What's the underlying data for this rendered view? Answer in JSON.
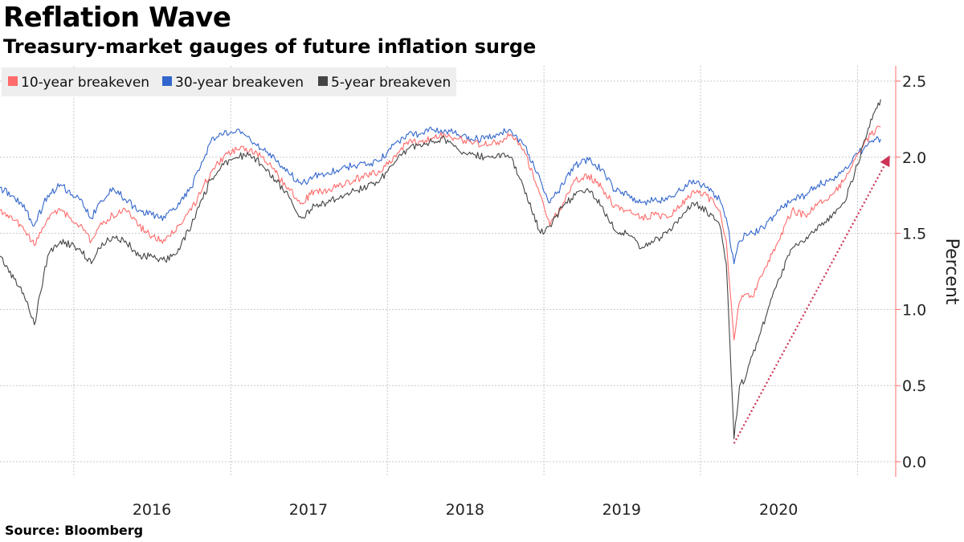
{
  "header": {
    "title": "Reflation Wave",
    "subtitle": "Treasury-market gauges of future inflation surge"
  },
  "footer": {
    "source": "Source: Bloomberg"
  },
  "chart_data": {
    "type": "line",
    "ylabel": "Percent",
    "ylim": [
      -0.1,
      2.6
    ],
    "xlim": [
      "2015-07-13",
      "2021-03-31"
    ],
    "y_ticks": [
      0.0,
      0.5,
      1.0,
      1.5,
      2.0,
      2.5
    ],
    "y_tick_labels": [
      "0.0",
      "0.5",
      "1.0",
      "1.5",
      "2.0",
      "2.5"
    ],
    "x_tick_labels": [
      {
        "label": "2016",
        "date": "2016-07-01"
      },
      {
        "label": "2017",
        "date": "2017-07-01"
      },
      {
        "label": "2018",
        "date": "2018-07-01"
      },
      {
        "label": "2019",
        "date": "2019-07-01"
      },
      {
        "label": "2020",
        "date": "2020-07-01"
      }
    ],
    "x_gridlines": [
      "2016-01-01",
      "2017-01-01",
      "2018-01-01",
      "2019-01-01",
      "2020-01-01",
      "2021-01-01"
    ],
    "grid": true,
    "legend_position": "top-left",
    "axis_color": "#ff6b6b",
    "series": [
      {
        "name": "10-year breakeven",
        "color": "#ff6b6b",
        "x": [
          "2015-07-13",
          "2015-09-01",
          "2015-10-01",
          "2015-11-01",
          "2015-12-01",
          "2016-01-15",
          "2016-02-11",
          "2016-03-01",
          "2016-04-01",
          "2016-05-01",
          "2016-06-01",
          "2016-07-01",
          "2016-08-01",
          "2016-09-01",
          "2016-10-01",
          "2016-11-15",
          "2016-12-15",
          "2017-01-15",
          "2017-02-15",
          "2017-03-15",
          "2017-04-15",
          "2017-05-15",
          "2017-06-15",
          "2017-07-15",
          "2017-08-15",
          "2017-09-15",
          "2017-10-15",
          "2017-11-15",
          "2017-12-15",
          "2018-01-15",
          "2018-02-15",
          "2018-03-15",
          "2018-04-15",
          "2018-05-15",
          "2018-06-15",
          "2018-07-15",
          "2018-08-15",
          "2018-09-15",
          "2018-10-15",
          "2018-11-15",
          "2018-12-24",
          "2019-01-15",
          "2019-02-15",
          "2019-03-15",
          "2019-04-15",
          "2019-05-15",
          "2019-06-15",
          "2019-07-15",
          "2019-08-15",
          "2019-09-15",
          "2019-10-15",
          "2019-11-15",
          "2019-12-15",
          "2020-01-15",
          "2020-02-15",
          "2020-03-01",
          "2020-03-19",
          "2020-04-01",
          "2020-04-15",
          "2020-05-01",
          "2020-06-01",
          "2020-07-01",
          "2020-08-01",
          "2020-09-01",
          "2020-10-01",
          "2020-11-01",
          "2020-12-01",
          "2021-01-01",
          "2021-02-01",
          "2021-02-24"
        ],
        "y": [
          1.65,
          1.55,
          1.42,
          1.6,
          1.65,
          1.55,
          1.45,
          1.55,
          1.62,
          1.65,
          1.55,
          1.48,
          1.45,
          1.55,
          1.65,
          1.9,
          2.0,
          2.05,
          2.05,
          2.0,
          1.9,
          1.8,
          1.7,
          1.78,
          1.78,
          1.82,
          1.85,
          1.88,
          1.9,
          2.0,
          2.1,
          2.1,
          2.12,
          2.15,
          2.12,
          2.1,
          2.08,
          2.1,
          2.15,
          2.05,
          1.75,
          1.55,
          1.7,
          1.85,
          1.88,
          1.8,
          1.68,
          1.65,
          1.6,
          1.62,
          1.6,
          1.68,
          1.78,
          1.75,
          1.65,
          1.45,
          0.8,
          1.05,
          1.1,
          1.08,
          1.28,
          1.45,
          1.65,
          1.62,
          1.7,
          1.75,
          1.85,
          2.02,
          2.15,
          2.2
        ]
      },
      {
        "name": "30-year breakeven",
        "color": "#3366cc",
        "x": [
          "2015-07-13",
          "2015-09-01",
          "2015-10-01",
          "2015-11-01",
          "2015-12-01",
          "2016-01-15",
          "2016-02-11",
          "2016-03-01",
          "2016-04-01",
          "2016-05-01",
          "2016-06-01",
          "2016-07-01",
          "2016-08-01",
          "2016-09-01",
          "2016-10-01",
          "2016-11-15",
          "2016-12-15",
          "2017-01-15",
          "2017-02-15",
          "2017-03-15",
          "2017-04-15",
          "2017-05-15",
          "2017-06-15",
          "2017-07-15",
          "2017-08-15",
          "2017-09-15",
          "2017-10-15",
          "2017-11-15",
          "2017-12-15",
          "2018-01-15",
          "2018-02-15",
          "2018-03-15",
          "2018-04-15",
          "2018-05-15",
          "2018-06-15",
          "2018-07-15",
          "2018-08-15",
          "2018-09-15",
          "2018-10-15",
          "2018-11-15",
          "2018-12-24",
          "2019-01-15",
          "2019-02-15",
          "2019-03-15",
          "2019-04-15",
          "2019-05-15",
          "2019-06-15",
          "2019-07-15",
          "2019-08-15",
          "2019-09-15",
          "2019-10-15",
          "2019-11-15",
          "2019-12-15",
          "2020-01-15",
          "2020-02-15",
          "2020-03-01",
          "2020-03-19",
          "2020-04-01",
          "2020-04-15",
          "2020-05-01",
          "2020-06-01",
          "2020-07-01",
          "2020-08-01",
          "2020-09-01",
          "2020-10-01",
          "2020-11-01",
          "2020-12-01",
          "2021-01-01",
          "2021-02-01",
          "2021-02-24"
        ],
        "y": [
          1.8,
          1.7,
          1.55,
          1.75,
          1.82,
          1.72,
          1.6,
          1.7,
          1.8,
          1.72,
          1.65,
          1.62,
          1.6,
          1.7,
          1.8,
          2.1,
          2.15,
          2.18,
          2.12,
          2.05,
          1.98,
          1.9,
          1.82,
          1.88,
          1.9,
          1.92,
          1.95,
          1.95,
          1.98,
          2.08,
          2.15,
          2.15,
          2.18,
          2.18,
          2.15,
          2.12,
          2.12,
          2.15,
          2.18,
          2.08,
          1.85,
          1.7,
          1.82,
          1.95,
          1.98,
          1.92,
          1.78,
          1.75,
          1.7,
          1.72,
          1.72,
          1.78,
          1.85,
          1.8,
          1.72,
          1.6,
          1.3,
          1.45,
          1.5,
          1.5,
          1.55,
          1.65,
          1.72,
          1.75,
          1.82,
          1.85,
          1.92,
          2.02,
          2.1,
          2.12
        ]
      },
      {
        "name": "5-year breakeven",
        "color": "#444444",
        "x": [
          "2015-07-13",
          "2015-08-15",
          "2015-09-15",
          "2015-10-01",
          "2015-11-01",
          "2015-12-01",
          "2016-01-15",
          "2016-02-11",
          "2016-03-01",
          "2016-04-01",
          "2016-05-01",
          "2016-06-01",
          "2016-07-01",
          "2016-08-01",
          "2016-09-01",
          "2016-10-01",
          "2016-11-15",
          "2016-12-15",
          "2017-01-15",
          "2017-02-15",
          "2017-03-15",
          "2017-04-15",
          "2017-05-15",
          "2017-06-15",
          "2017-07-15",
          "2017-08-15",
          "2017-09-15",
          "2017-10-15",
          "2017-11-15",
          "2017-12-15",
          "2018-01-15",
          "2018-02-15",
          "2018-03-15",
          "2018-04-15",
          "2018-05-15",
          "2018-06-15",
          "2018-07-15",
          "2018-08-15",
          "2018-09-15",
          "2018-10-15",
          "2018-11-15",
          "2018-12-24",
          "2019-01-15",
          "2019-02-15",
          "2019-03-15",
          "2019-04-15",
          "2019-05-15",
          "2019-06-15",
          "2019-07-15",
          "2019-08-15",
          "2019-09-15",
          "2019-10-15",
          "2019-11-15",
          "2019-12-15",
          "2020-01-15",
          "2020-02-15",
          "2020-03-01",
          "2020-03-19",
          "2020-04-01",
          "2020-04-15",
          "2020-05-01",
          "2020-06-01",
          "2020-07-01",
          "2020-08-01",
          "2020-09-01",
          "2020-10-01",
          "2020-11-01",
          "2020-12-01",
          "2021-01-01",
          "2021-02-01",
          "2021-02-24"
        ],
        "y": [
          1.35,
          1.2,
          1.05,
          0.9,
          1.35,
          1.45,
          1.4,
          1.3,
          1.4,
          1.48,
          1.45,
          1.35,
          1.35,
          1.32,
          1.4,
          1.55,
          1.85,
          1.95,
          2.0,
          2.02,
          1.95,
          1.85,
          1.75,
          1.6,
          1.68,
          1.7,
          1.75,
          1.78,
          1.8,
          1.85,
          1.95,
          2.05,
          2.08,
          2.1,
          2.12,
          2.05,
          2.02,
          2.0,
          2.02,
          2.0,
          1.8,
          1.5,
          1.55,
          1.68,
          1.75,
          1.78,
          1.68,
          1.52,
          1.5,
          1.4,
          1.45,
          1.5,
          1.6,
          1.7,
          1.65,
          1.55,
          1.3,
          0.15,
          0.5,
          0.55,
          0.7,
          0.95,
          1.2,
          1.4,
          1.45,
          1.55,
          1.6,
          1.7,
          1.95,
          2.25,
          2.38
        ]
      }
    ],
    "annotations": [
      {
        "type": "dotted-arrow",
        "color": "#cc3355",
        "from": {
          "x": "2020-03-19",
          "y": 0.12
        },
        "to": {
          "x": "2021-03-15",
          "y": 2.0
        }
      }
    ]
  }
}
